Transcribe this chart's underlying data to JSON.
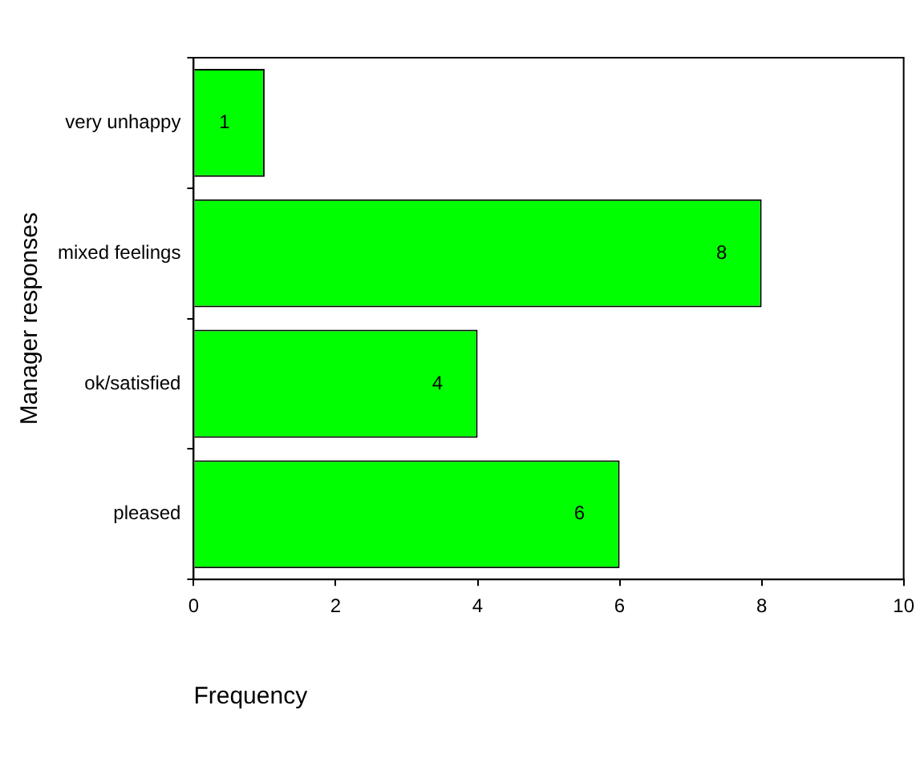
{
  "chart_data": {
    "type": "bar",
    "orientation": "horizontal",
    "xlabel": "Frequency",
    "ylabel": "Manager responses",
    "categories": [
      "very unhappy",
      "mixed feelings",
      "ok/satisfied",
      "pleased"
    ],
    "values": [
      1,
      8,
      4,
      6
    ],
    "color": "#00ff00",
    "xlim": [
      0,
      10
    ],
    "xticks": [
      0,
      2,
      4,
      6,
      8,
      10
    ],
    "grid": false,
    "legend": false,
    "data_labels": true
  }
}
